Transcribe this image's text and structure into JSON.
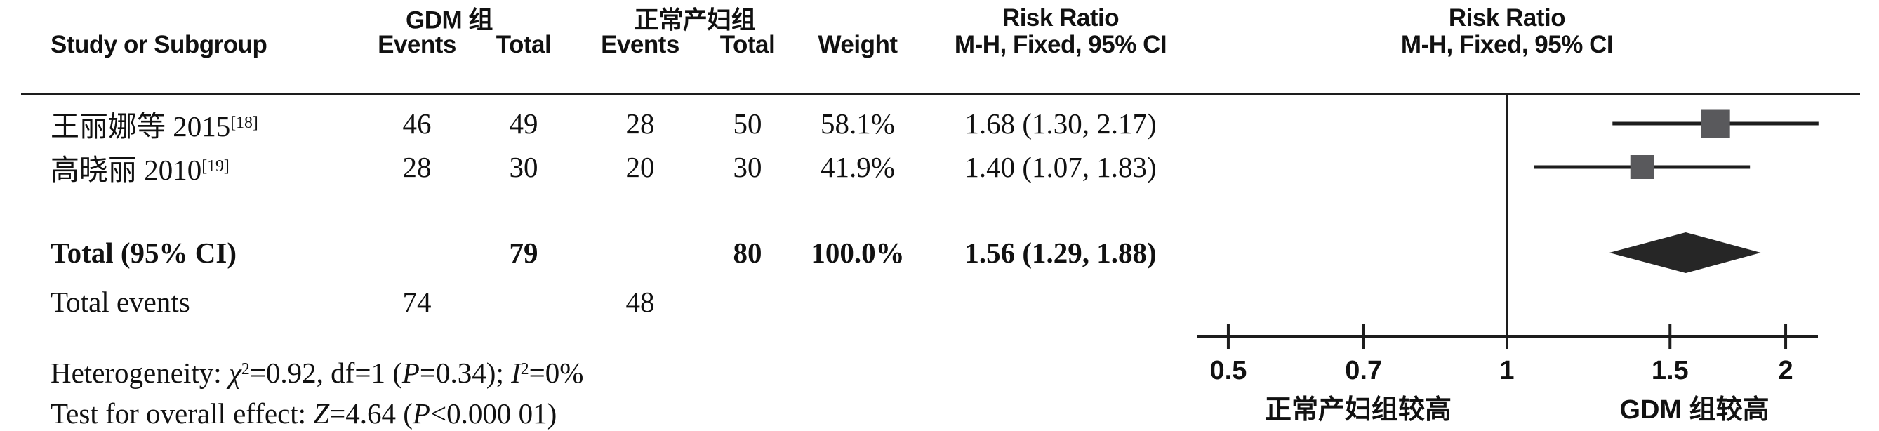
{
  "colors": {
    "text": "#111111",
    "line": "#1d1d1d",
    "square": "#59595c",
    "diamond": "#262626"
  },
  "header": {
    "study": "Study or Subgroup",
    "gdm_group": "GDM 组",
    "control_group": "正常产妇组",
    "events": "Events",
    "total": "Total",
    "weight": "Weight",
    "risk_ratio": "Risk Ratio",
    "method": "M-H, Fixed, 95% CI"
  },
  "table": {
    "studies": [
      {
        "name_parts": [
          {
            "text": "王丽娜等 2015"
          },
          {
            "text": "[18]",
            "style": "sup"
          }
        ],
        "gdm_events": "46",
        "gdm_total": "49",
        "ctl_events": "28",
        "ctl_total": "50",
        "weight": "58.1%",
        "estimate": "1.68 (1.30, 2.17)"
      },
      {
        "name_parts": [
          {
            "text": "高晓丽 2010"
          },
          {
            "text": "[19]",
            "style": "sup"
          }
        ],
        "gdm_events": "28",
        "gdm_total": "30",
        "ctl_events": "20",
        "ctl_total": "30",
        "weight": "41.9%",
        "estimate": "1.40 (1.07, 1.83)"
      }
    ],
    "total_row": {
      "label": "Total (95% CI)",
      "gdm_total": "79",
      "ctl_total": "80",
      "weight": "100.0%",
      "estimate": "1.56 (1.29, 1.88)"
    },
    "total_events": {
      "label": "Total events",
      "gdm": "74",
      "ctl": "48"
    },
    "heterogeneity_parts": [
      {
        "text": "Heterogeneity: "
      },
      {
        "text": "χ",
        "style": "i"
      },
      {
        "text": "2",
        "style": "sup"
      },
      {
        "text": "=0.92, df=1 ("
      },
      {
        "text": "P",
        "style": "i"
      },
      {
        "text": "=0.34); "
      },
      {
        "text": "I",
        "style": "i"
      },
      {
        "text": "2",
        "style": "sup"
      },
      {
        "text": "=0%"
      }
    ],
    "overall_test_parts": [
      {
        "text": "Test for overall effect: "
      },
      {
        "text": "Z",
        "style": "i"
      },
      {
        "text": "=4.64 ("
      },
      {
        "text": "P",
        "style": "i"
      },
      {
        "text": "<0.000 01)"
      }
    ]
  },
  "plot": {
    "tick_labels": [
      "0.5",
      "0.7",
      "1",
      "1.5",
      "2"
    ],
    "favours_left": "正常产妇组较高",
    "favours_right": "GDM 组较高"
  },
  "chart_data": {
    "type": "scatter",
    "subtype": "forest-plot",
    "title": "Risk Ratio, M-H, Fixed, 95% CI",
    "x_scale": "log",
    "xlim": [
      0.5,
      2.17
    ],
    "axis_ticks": [
      0.5,
      0.7,
      1,
      1.5,
      2
    ],
    "no_effect_value": 1,
    "studies": [
      {
        "label": "王丽娜等 2015[18]",
        "rr": 1.68,
        "ci_low": 1.3,
        "ci_high": 2.17,
        "weight_pct": 58.1,
        "gdm_events": 46,
        "gdm_total": 49,
        "control_events": 28,
        "control_total": 50
      },
      {
        "label": "高晓丽 2010[19]",
        "rr": 1.4,
        "ci_low": 1.07,
        "ci_high": 1.83,
        "weight_pct": 41.9,
        "gdm_events": 28,
        "gdm_total": 30,
        "control_events": 20,
        "control_total": 30
      }
    ],
    "total": {
      "label": "Total (95% CI)",
      "rr": 1.56,
      "ci_low": 1.29,
      "ci_high": 1.88,
      "weight_pct": 100.0,
      "gdm_total": 79,
      "control_total": 80,
      "gdm_total_events": 74,
      "control_total_events": 48
    },
    "heterogeneity": "χ2=0.92, df=1 (P=0.34); I2=0%",
    "overall_effect": "Z=4.64 (P<0.000 01)",
    "favours_left": "正常产妇组较高",
    "favours_right": "GDM 组较高",
    "legend_position": "none",
    "grid": false
  }
}
